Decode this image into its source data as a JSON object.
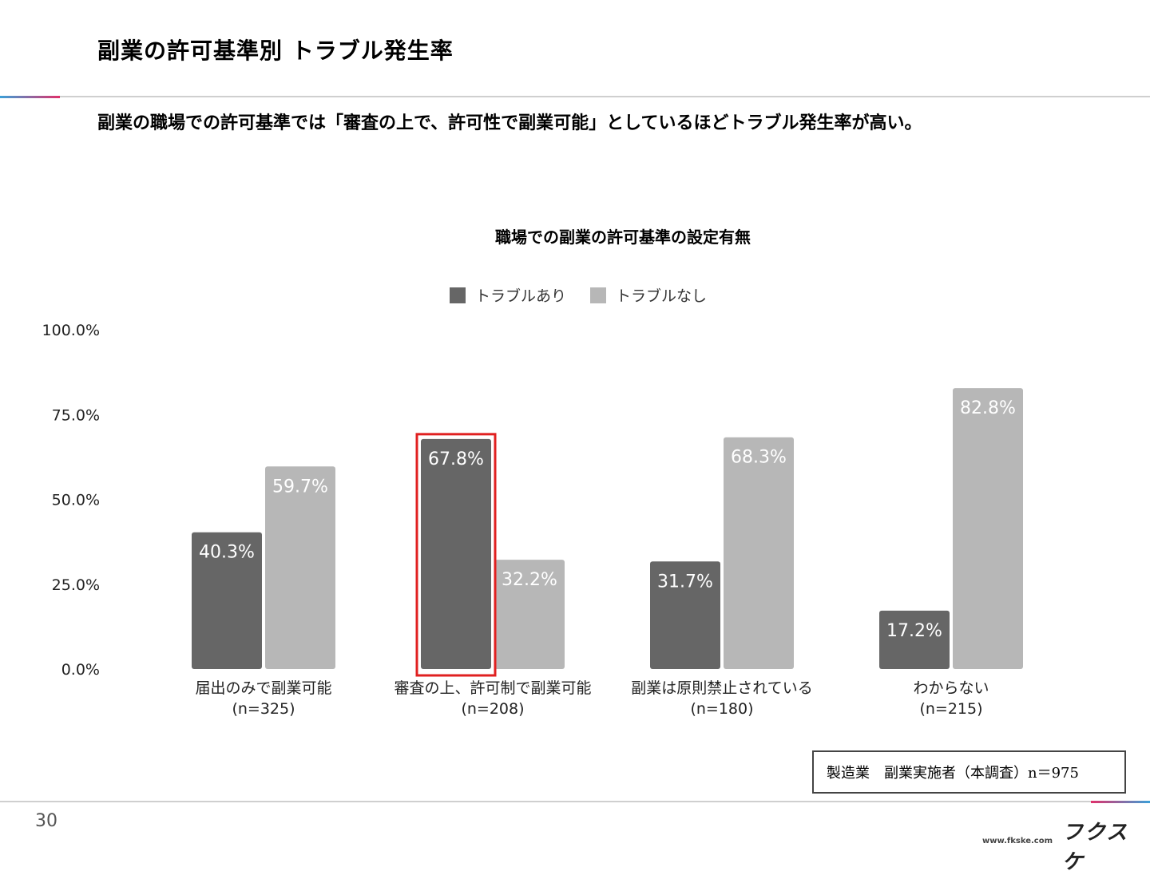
{
  "header": {
    "title": "副業の許可基準別 トラブル発生率",
    "lead": "副業の職場での許可基準では「審査の上で、許可性で副業可能」としているほどトラブル発生率が高い。"
  },
  "chart_data": {
    "type": "bar",
    "title": "職場での副業の許可基準の設定有無",
    "categories": [
      {
        "label": "届出のみで副業可能",
        "n": "(n=325)"
      },
      {
        "label": "審査の上、許可制で副業可能",
        "n": "(n=208)"
      },
      {
        "label": "副業は原則禁止されている",
        "n": "(n=180)"
      },
      {
        "label": "わからない",
        "n": "(n=215)"
      }
    ],
    "series": [
      {
        "name": "トラブルあり",
        "color": "#666666",
        "values": [
          40.3,
          67.8,
          31.7,
          17.2
        ],
        "labels": [
          "40.3%",
          "67.8%",
          "31.7%",
          "17.2%"
        ]
      },
      {
        "name": "トラブルなし",
        "color": "#b7b7b7",
        "values": [
          59.7,
          32.2,
          68.3,
          82.8
        ],
        "labels": [
          "59.7%",
          "32.2%",
          "68.3%",
          "82.8%"
        ]
      }
    ],
    "ylim": [
      0,
      100
    ],
    "yticks": [
      "0.0%",
      "25.0%",
      "50.0%",
      "75.0%",
      "100.0%"
    ],
    "legend_position": "top",
    "highlight": {
      "category_index": 1,
      "series_index": 0,
      "color": "#e02020"
    }
  },
  "footer": {
    "note": "製造業　副業実施者（本調査）n＝975",
    "page": "30",
    "logo": "フクスケ",
    "url": "www.fkske.com"
  }
}
